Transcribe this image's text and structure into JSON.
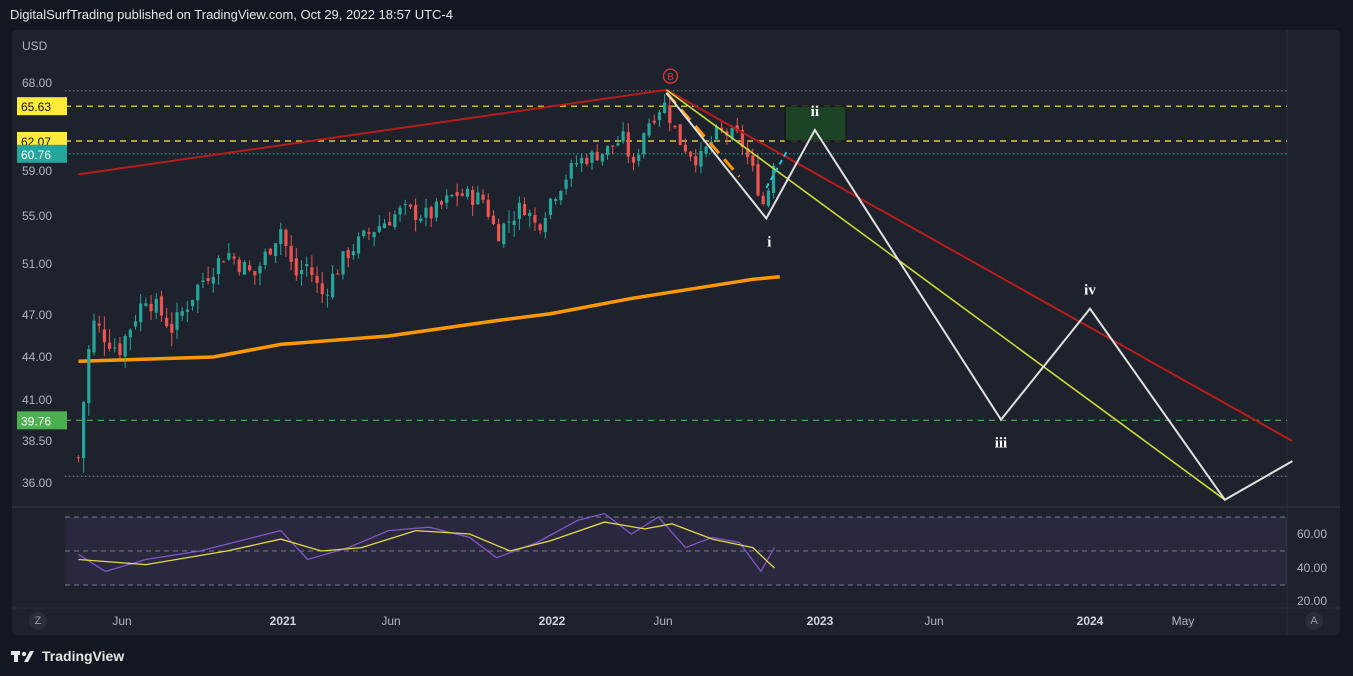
{
  "header": {
    "published": "DigitalSurfTrading published on TradingView.com, Oct 29, 2022 18:57 UTC-4"
  },
  "footer": {
    "brand": "TradingView"
  },
  "corner": {
    "left": "Z",
    "right": "A"
  },
  "chart_data": {
    "type": "candlestick",
    "currency": "USD",
    "price_axis": {
      "ticks": [
        "68.00",
        "59.00",
        "55.00",
        "51.00",
        "47.00",
        "44.00",
        "41.00",
        "38.50",
        "36.00"
      ],
      "labels": [
        {
          "text": "65.63",
          "color": "#ffeb3b"
        },
        {
          "text": "62.07",
          "color": "#ffeb3b"
        },
        {
          "text": "60.76",
          "color": "#26a69a"
        },
        {
          "text": "39.76",
          "color": "#4caf50"
        }
      ]
    },
    "time_axis": [
      "Jun",
      "2021",
      "Jun",
      "2022",
      "Jun",
      "2023",
      "Jun",
      "2024",
      "May"
    ],
    "time_bold": [
      "2021",
      "2022",
      "2023",
      "2024"
    ],
    "horizontal_levels": [
      {
        "price": 65.63,
        "color": "#ffeb3b",
        "style": "dashed"
      },
      {
        "price": 62.07,
        "color": "#ffeb3b",
        "style": "dashed"
      },
      {
        "price": 60.76,
        "color": "#26a69a",
        "style": "dotted"
      },
      {
        "price": 39.76,
        "color": "#4caf50",
        "style": "dashed"
      },
      {
        "price": 67.2,
        "color": "#787b86",
        "style": "dotted"
      },
      {
        "price": 36.4,
        "color": "#787b86",
        "style": "dotted"
      }
    ],
    "ma200": [
      {
        "t": 2020.25,
        "p": 43.7
      },
      {
        "t": 2020.75,
        "p": 44.0
      },
      {
        "t": 2021.0,
        "p": 44.9
      },
      {
        "t": 2021.4,
        "p": 45.5
      },
      {
        "t": 2021.8,
        "p": 46.6
      },
      {
        "t": 2022.0,
        "p": 47.1
      },
      {
        "t": 2022.3,
        "p": 48.3
      },
      {
        "t": 2022.6,
        "p": 49.3
      },
      {
        "t": 2022.75,
        "p": 49.8
      },
      {
        "t": 2022.85,
        "p": 50.0
      }
    ],
    "price_path": [
      {
        "t": 2020.25,
        "p": 37.5
      },
      {
        "t": 2020.3,
        "p": 46.5
      },
      {
        "t": 2020.4,
        "p": 44.5
      },
      {
        "t": 2020.5,
        "p": 48.5
      },
      {
        "t": 2020.6,
        "p": 46.0
      },
      {
        "t": 2020.7,
        "p": 49.5
      },
      {
        "t": 2020.8,
        "p": 52.0
      },
      {
        "t": 2020.9,
        "p": 50.0
      },
      {
        "t": 2021.0,
        "p": 54.0
      },
      {
        "t": 2021.05,
        "p": 50.0
      },
      {
        "t": 2021.1,
        "p": 51.0
      },
      {
        "t": 2021.15,
        "p": 48.5
      },
      {
        "t": 2021.25,
        "p": 52.0
      },
      {
        "t": 2021.35,
        "p": 54.0
      },
      {
        "t": 2021.45,
        "p": 55.5
      },
      {
        "t": 2021.55,
        "p": 55.0
      },
      {
        "t": 2021.65,
        "p": 57.0
      },
      {
        "t": 2021.75,
        "p": 56.5
      },
      {
        "t": 2021.8,
        "p": 53.5
      },
      {
        "t": 2021.9,
        "p": 56.0
      },
      {
        "t": 2021.95,
        "p": 54.0
      },
      {
        "t": 2022.0,
        "p": 56.5
      },
      {
        "t": 2022.1,
        "p": 60.0
      },
      {
        "t": 2022.2,
        "p": 61.0
      },
      {
        "t": 2022.28,
        "p": 62.5
      },
      {
        "t": 2022.3,
        "p": 58.5
      },
      {
        "t": 2022.35,
        "p": 63.5
      },
      {
        "t": 2022.42,
        "p": 66.0
      },
      {
        "t": 2022.48,
        "p": 62.0
      },
      {
        "t": 2022.55,
        "p": 60.0
      },
      {
        "t": 2022.62,
        "p": 63.0
      },
      {
        "t": 2022.7,
        "p": 62.5
      },
      {
        "t": 2022.75,
        "p": 59.0
      },
      {
        "t": 2022.79,
        "p": 56.0
      },
      {
        "t": 2022.82,
        "p": 58.5
      },
      {
        "t": 2022.83,
        "p": 60.8
      }
    ],
    "trendlines": [
      {
        "color": "#b71c1c",
        "width": 2,
        "points": [
          {
            "t": 2020.25,
            "p": 58.7
          },
          {
            "t": 2022.43,
            "p": 67.3
          },
          {
            "t": 2024.75,
            "p": 38.5
          }
        ]
      },
      {
        "color": "#cddc39",
        "width": 1.6,
        "points": [
          {
            "t": 2022.43,
            "p": 67.3
          },
          {
            "t": 2024.5,
            "p": 35.0
          }
        ]
      },
      {
        "color": "#cddc39",
        "width": 1.6,
        "points": [
          {
            "t": 2024.5,
            "p": 35.0
          },
          {
            "t": 2024.75,
            "p": 37.3
          }
        ]
      }
    ],
    "elliott_projection": {
      "color": "#e0e0e0",
      "points": [
        {
          "t": 2022.43,
          "p": 67.0
        },
        {
          "t": 2022.8,
          "p": 54.8
        },
        {
          "t": 2022.98,
          "p": 63.2
        },
        {
          "t": 2023.67,
          "p": 39.8
        },
        {
          "t": 2024.0,
          "p": 47.5
        },
        {
          "t": 2024.5,
          "p": 35.0
        },
        {
          "t": 2024.75,
          "p": 37.3
        }
      ],
      "labels": [
        {
          "text": "i",
          "t": 2022.8,
          "p": 54.8
        },
        {
          "text": "ii",
          "t": 2022.98,
          "p": 63.2
        },
        {
          "text": "iii",
          "t": 2023.67,
          "p": 39.8
        },
        {
          "text": "iv",
          "t": 2024.0,
          "p": 47.5
        }
      ]
    },
    "target_box": {
      "t1": 2022.87,
      "t2": 3023.0,
      "p1": 62.07,
      "p2": 65.63,
      "color": "#1b5e20"
    },
    "b_marker": {
      "text": "B",
      "t": 2022.43,
      "p": 68.7
    },
    "rsi": {
      "ticks": [
        "60.00",
        "40.00",
        "20.00"
      ],
      "levels": [
        70,
        30,
        50
      ],
      "rsi_path": [
        {
          "t": 2020.25,
          "v": 48
        },
        {
          "t": 2020.35,
          "v": 38
        },
        {
          "t": 2020.5,
          "v": 45
        },
        {
          "t": 2020.7,
          "v": 50
        },
        {
          "t": 2020.9,
          "v": 58
        },
        {
          "t": 2021.0,
          "v": 62
        },
        {
          "t": 2021.1,
          "v": 45
        },
        {
          "t": 2021.25,
          "v": 52
        },
        {
          "t": 2021.4,
          "v": 62
        },
        {
          "t": 2021.55,
          "v": 64
        },
        {
          "t": 2021.7,
          "v": 58
        },
        {
          "t": 2021.8,
          "v": 46
        },
        {
          "t": 2021.95,
          "v": 55
        },
        {
          "t": 2022.1,
          "v": 68
        },
        {
          "t": 2022.2,
          "v": 72
        },
        {
          "t": 2022.3,
          "v": 60
        },
        {
          "t": 2022.4,
          "v": 70
        },
        {
          "t": 2022.5,
          "v": 52
        },
        {
          "t": 2022.6,
          "v": 58
        },
        {
          "t": 2022.7,
          "v": 55
        },
        {
          "t": 2022.78,
          "v": 38
        },
        {
          "t": 2022.83,
          "v": 52
        }
      ],
      "sma_path": [
        {
          "t": 2020.25,
          "v": 45
        },
        {
          "t": 2020.5,
          "v": 42
        },
        {
          "t": 2020.8,
          "v": 50
        },
        {
          "t": 2021.0,
          "v": 57
        },
        {
          "t": 2021.15,
          "v": 50
        },
        {
          "t": 2021.3,
          "v": 52
        },
        {
          "t": 2021.5,
          "v": 62
        },
        {
          "t": 2021.7,
          "v": 60
        },
        {
          "t": 2021.85,
          "v": 50
        },
        {
          "t": 2022.0,
          "v": 56
        },
        {
          "t": 2022.2,
          "v": 67
        },
        {
          "t": 2022.35,
          "v": 63
        },
        {
          "t": 2022.45,
          "v": 66
        },
        {
          "t": 2022.6,
          "v": 57
        },
        {
          "t": 2022.75,
          "v": 52
        },
        {
          "t": 2022.83,
          "v": 40
        }
      ]
    }
  }
}
